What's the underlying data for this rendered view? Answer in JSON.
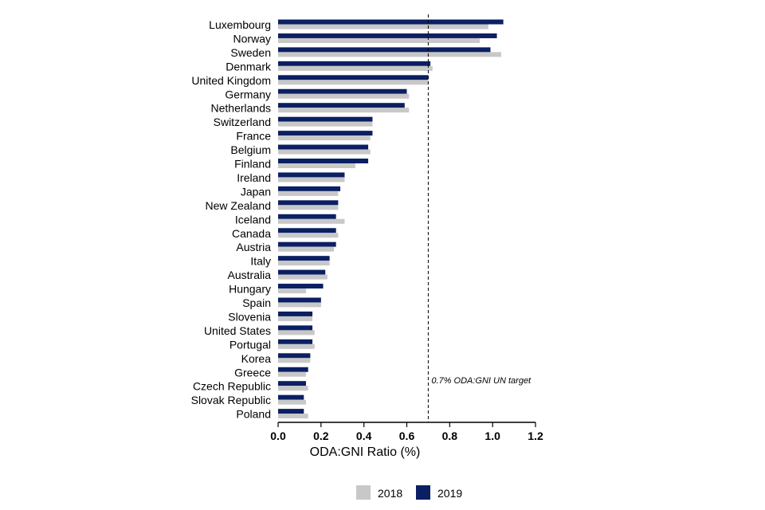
{
  "chart_data": {
    "type": "bar",
    "orientation": "horizontal",
    "categories": [
      "Luxembourg",
      "Norway",
      "Sweden",
      "Denmark",
      "United Kingdom",
      "Germany",
      "Netherlands",
      "Switzerland",
      "France",
      "Belgium",
      "Finland",
      "Ireland",
      "Japan",
      "New Zealand",
      "Iceland",
      "Canada",
      "Austria",
      "Italy",
      "Australia",
      "Hungary",
      "Spain",
      "Slovenia",
      "United States",
      "Portugal",
      "Korea",
      "Greece",
      "Czech Republic",
      "Slovak Republic",
      "Poland"
    ],
    "series": [
      {
        "name": "2018",
        "color": "#c8c8c8",
        "values": [
          0.98,
          0.94,
          1.04,
          0.72,
          0.7,
          0.61,
          0.61,
          0.44,
          0.43,
          0.43,
          0.36,
          0.31,
          0.28,
          0.28,
          0.31,
          0.28,
          0.26,
          0.24,
          0.23,
          0.13,
          0.2,
          0.16,
          0.17,
          0.17,
          0.15,
          0.13,
          0.14,
          0.13,
          0.14
        ]
      },
      {
        "name": "2019",
        "color": "#0b1f63",
        "values": [
          1.05,
          1.02,
          0.99,
          0.71,
          0.7,
          0.6,
          0.59,
          0.44,
          0.44,
          0.42,
          0.42,
          0.31,
          0.29,
          0.28,
          0.27,
          0.27,
          0.27,
          0.24,
          0.22,
          0.21,
          0.2,
          0.16,
          0.16,
          0.16,
          0.15,
          0.14,
          0.13,
          0.12,
          0.12
        ]
      }
    ],
    "xlabel": "ODA:GNI Ratio (%)",
    "xlim": [
      0,
      1.2
    ],
    "xticks": [
      "0.0",
      "0.2",
      "0.4",
      "0.6",
      "0.8",
      "1.0",
      "1.2"
    ],
    "reference_line": {
      "value": 0.7,
      "label": "0.7% ODA:GNI UN target",
      "style": "dashed"
    },
    "legend_position": "bottom",
    "grid": false
  }
}
